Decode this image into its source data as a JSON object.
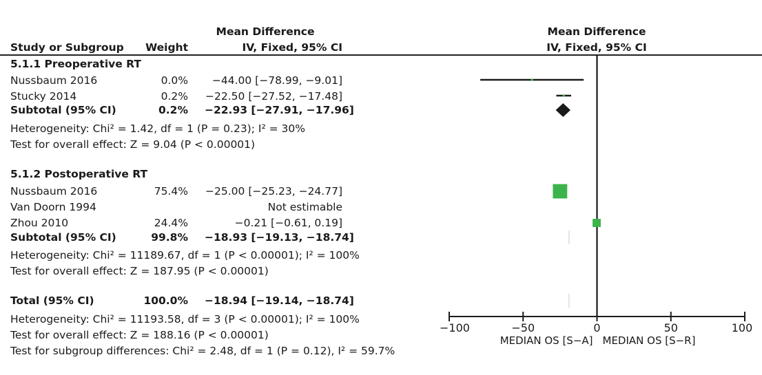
{
  "header": {
    "study_col": "Study or Subgroup",
    "weight_col": "Weight",
    "effect_col_line1": "Mean Difference",
    "effect_col_line2": "IV, Fixed, 95% CI",
    "plot_col_line1": "Mean Difference",
    "plot_col_line2": "IV, Fixed, 95% CI"
  },
  "colors": {
    "square": "#3cb44b",
    "diamond": "#1a1a1a",
    "line": "#1a1a1a"
  },
  "rows": [
    {
      "type": "group",
      "label": "5.1.1 Preoperative RT"
    },
    {
      "type": "study",
      "label": "Nussbaum 2016",
      "weight": "0.0%",
      "ci": "−44.00 [−78.99, −9.01]"
    },
    {
      "type": "study",
      "label": "Stucky 2014",
      "weight": "0.2%",
      "ci": "−22.50 [−27.52, −17.48]"
    },
    {
      "type": "subtotal",
      "label": "Subtotal (95% CI)",
      "weight": "0.2%",
      "ci": "−22.93 [−27.91, −17.96]"
    },
    {
      "type": "note",
      "label": "Heterogeneity: Chi² = 1.42, df = 1 (P = 0.23); I² = 30%"
    },
    {
      "type": "note",
      "label": "Test for overall effect: Z = 9.04 (P < 0.00001)"
    },
    {
      "type": "group",
      "label": "5.1.2 Postoperative RT"
    },
    {
      "type": "study",
      "label": "Nussbaum 2016",
      "weight": "75.4%",
      "ci": "−25.00 [−25.23, −24.77]"
    },
    {
      "type": "study",
      "label": "Van Doorn 1994",
      "weight": "",
      "ci": "Not estimable"
    },
    {
      "type": "study",
      "label": "Zhou 2010",
      "weight": "24.4%",
      "ci": "−0.21 [−0.61, 0.19]"
    },
    {
      "type": "subtotal",
      "label": "Subtotal (95% CI)",
      "weight": "99.8%",
      "ci": "−18.93 [−19.13, −18.74]"
    },
    {
      "type": "note",
      "label": "Heterogeneity: Chi² = 11189.67, df = 1 (P < 0.00001); I² = 100%"
    },
    {
      "type": "note",
      "label": "Test for overall effect: Z = 187.95 (P < 0.00001)"
    },
    {
      "type": "subtotal",
      "label": "Total (95% CI)",
      "weight": "100.0%",
      "ci": "−18.94 [−19.14, −18.74]"
    },
    {
      "type": "note",
      "label": "Heterogeneity: Chi² = 11193.58, df = 3 (P < 0.00001); I² = 100%"
    },
    {
      "type": "note",
      "label": "Test for overall effect: Z = 188.16 (P < 0.00001)"
    },
    {
      "type": "note",
      "label": "Test for subgroup differences: Chi² = 2.48, df = 1 (P = 0.12), I² = 59.7%"
    }
  ],
  "chart_data": {
    "type": "forest",
    "xlim": [
      -100,
      100
    ],
    "xticks": [
      "−100",
      "−50",
      "0",
      "50",
      "100"
    ],
    "xtick_values": [
      -100,
      -50,
      0,
      50,
      100
    ],
    "xlabel_left": "MEDIAN OS [S−A]",
    "xlabel_right": "MEDIAN OS [S−R]",
    "studies": [
      {
        "label": "Nussbaum 2016",
        "group": "5.1.1 Preoperative RT",
        "md": -44.0,
        "lo": -78.99,
        "hi": -9.01,
        "weight": 0.0
      },
      {
        "label": "Stucky 2014",
        "group": "5.1.1 Preoperative RT",
        "md": -22.5,
        "lo": -27.52,
        "hi": -17.48,
        "weight": 0.2
      },
      {
        "label": "Nussbaum 2016",
        "group": "5.1.2 Postoperative RT",
        "md": -25.0,
        "lo": -25.23,
        "hi": -24.77,
        "weight": 75.4
      },
      {
        "label": "Zhou 2010",
        "group": "5.1.2 Postoperative RT",
        "md": -0.21,
        "lo": -0.61,
        "hi": 0.19,
        "weight": 24.4
      }
    ],
    "summaries": [
      {
        "label": "Subtotal (95% CI)",
        "group": "5.1.1 Preoperative RT",
        "md": -22.93,
        "lo": -27.91,
        "hi": -17.96
      },
      {
        "label": "Subtotal (95% CI)",
        "group": "5.1.2 Postoperative RT",
        "md": -18.93,
        "lo": -19.13,
        "hi": -18.74
      },
      {
        "label": "Total (95% CI)",
        "md": -18.94,
        "lo": -19.14,
        "hi": -18.74
      }
    ]
  }
}
